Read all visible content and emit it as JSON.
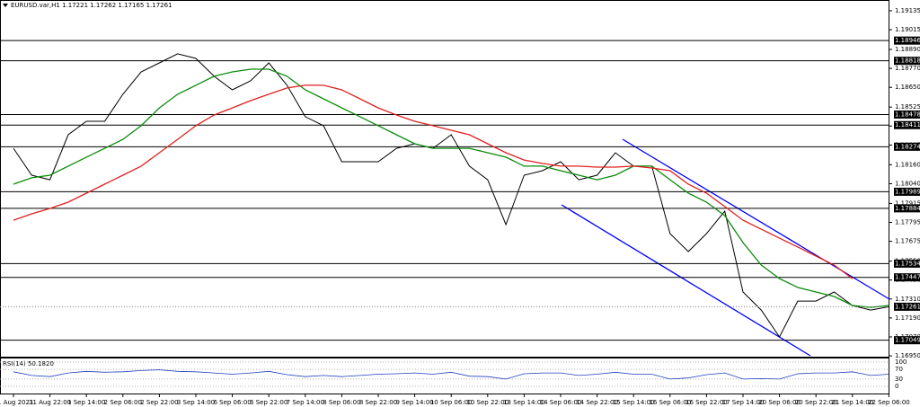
{
  "chart_data": [
    {
      "type": "line",
      "title": "EURUSD.var,H1 1.17221 1.17262 1.17165 1.17261",
      "categories": [
        "31 Aug 2021",
        null,
        "31 Aug 22:00",
        null,
        "1 Sep 14:00",
        null,
        "2 Sep 06:00",
        null,
        "2 Sep 22:00",
        null,
        "3 Sep 14:00",
        null,
        "6 Sep 06:00",
        null,
        "6 Sep 22:00",
        null,
        "7 Sep 14:00",
        null,
        "8 Sep 06:00",
        null,
        "8 Sep 22:00",
        null,
        "9 Sep 14:00",
        null,
        "10 Sep 06:00",
        null,
        "10 Sep 22:00",
        null,
        "13 Sep 14:00",
        null,
        "14 Sep 06:00",
        null,
        "14 Sep 22:00",
        null,
        "15 Sep 14:00",
        null,
        "16 Sep 06:00",
        null,
        "16 Sep 22:00",
        null,
        "17 Sep 14:00",
        null,
        "20 Sep 06:00",
        null,
        "20 Sep 22:00",
        null,
        "21 Sep 14:00",
        null,
        "22 Sep 06:00"
      ],
      "series": [
        {
          "color": "#000000",
          "values": [
            1.18264,
            1.18094,
            1.18065,
            1.1835,
            1.18435,
            1.18435,
            1.18606,
            1.18748,
            1.18805,
            1.18862,
            1.18833,
            1.1872,
            1.18634,
            1.18691,
            1.18805,
            1.18663,
            1.18464,
            1.18407,
            1.18179,
            1.18179,
            1.18179,
            1.18264,
            1.18293,
            1.18264,
            1.1835,
            1.18151,
            1.18065,
            1.17781,
            1.18094,
            1.18122,
            1.18179,
            1.18065,
            1.18094,
            1.18236,
            1.18151,
            1.18151,
            1.17724,
            1.1761,
            1.17724,
            1.17866,
            1.17354,
            1.1724,
            1.1707,
            1.17297,
            1.17297,
            1.17354,
            1.17269,
            1.1724,
            1.17261
          ]
        },
        {
          "color": "#0a8a0a",
          "values": [
            1.18037,
            1.18077,
            1.18094,
            1.18151,
            1.18208,
            1.18264,
            1.18321,
            1.18407,
            1.1852,
            1.18606,
            1.18663,
            1.1872,
            1.18748,
            1.18765,
            1.18765,
            1.1872,
            1.18634,
            1.18577,
            1.1852,
            1.18464,
            1.18407,
            1.1835,
            1.18293,
            1.18264,
            1.18264,
            1.18264,
            1.18236,
            1.18208,
            1.18151,
            1.18151,
            1.18122,
            1.18094,
            1.18065,
            1.18094,
            1.18151,
            1.18151,
            1.18065,
            1.1798,
            1.17923,
            1.17838,
            1.17667,
            1.17525,
            1.17439,
            1.17383,
            1.17354,
            1.17326,
            1.17269,
            1.17257,
            1.17269
          ]
        },
        {
          "color": "#e0201f",
          "values": [
            1.17809,
            1.17849,
            1.17883,
            1.17923,
            1.1798,
            1.18037,
            1.18094,
            1.18151,
            1.18236,
            1.18321,
            1.18407,
            1.18475,
            1.1852,
            1.18566,
            1.18606,
            1.18646,
            1.18663,
            1.18663,
            1.18634,
            1.18577,
            1.1852,
            1.18475,
            1.18435,
            1.18407,
            1.18378,
            1.1835,
            1.18293,
            1.18236,
            1.1819,
            1.18168,
            1.18151,
            1.18151,
            1.18145,
            1.18145,
            1.18151,
            1.18139,
            1.18122,
            1.18037,
            1.1798,
            1.17895,
            1.17809,
            1.17752,
            1.17695,
            1.17639,
            1.17582,
            1.17525,
            1.17439,
            null,
            null
          ]
        }
      ],
      "ylim": [
        1.16939,
        1.19203
      ],
      "yticks": [
        1.19135,
        1.19015,
        {
          "value": 1.1889,
          "label": "1.18890"
        },
        {
          "value": 1.1877,
          "label": "1.18770"
        },
        {
          "value": 1.1865,
          "label": "1.18650"
        },
        1.18525,
        1.18405,
        1.18285,
        {
          "value": 1.1816,
          "label": "1.18160"
        },
        {
          "value": 1.1804,
          "label": "1.18040"
        },
        1.17915,
        1.17795,
        1.17675,
        {
          "value": 1.1755,
          "label": "1.17550"
        },
        {
          "value": 1.1743,
          "label": "1.17430"
        },
        {
          "value": 1.1731,
          "label": "1.17310"
        },
        {
          "value": 1.1719,
          "label": "1.17190"
        },
        {
          "value": 1.1707,
          "label": "1.17070"
        },
        {
          "value": 1.1695,
          "label": "1.16950"
        }
      ],
      "levels": [
        1.18946,
        1.18818,
        1.18478,
        1.18411,
        1.18274,
        1.17989,
        1.17884,
        1.17534,
        1.17447,
        1.17049
      ],
      "current_price": 1.17261
    },
    {
      "type": "line",
      "title": "RSI(14) 50.1820",
      "color": "#1f3fbf",
      "values": [
        60,
        45,
        40,
        55,
        62,
        58,
        60,
        65,
        68,
        62,
        60,
        55,
        50,
        55,
        62,
        48,
        40,
        45,
        40,
        45,
        50,
        52,
        55,
        50,
        58,
        42,
        40,
        30,
        52,
        55,
        55,
        45,
        50,
        58,
        50,
        50,
        30,
        35,
        48,
        55,
        30,
        32,
        30,
        52,
        55,
        55,
        60,
        45,
        50
      ],
      "ylim": [
        0,
        100
      ],
      "yticks": [
        100,
        70,
        30,
        0
      ]
    }
  ]
}
